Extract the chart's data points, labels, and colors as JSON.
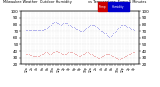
{
  "title_left": "Milwaukee Weather  Outdoor Humidity",
  "title_right": "vs Temperature  Every 5 Minutes",
  "blue_color": "#0000cc",
  "red_color": "#cc0000",
  "bg_color": "#ffffff",
  "grid_color": "#bbbbbb",
  "ylim": [
    20,
    100
  ],
  "yticks": [
    20,
    30,
    40,
    50,
    60,
    70,
    80,
    90,
    100
  ],
  "ytick_labels_left": [
    "20",
    "30",
    "40",
    "50",
    "60",
    "70",
    "80",
    "90",
    "100"
  ],
  "ytick_labels_right": [
    "20",
    "30",
    "40",
    "50",
    "60",
    "70",
    "80",
    "90",
    "100"
  ],
  "hum_y": [
    72,
    72,
    72,
    72,
    72,
    72,
    72,
    72,
    72,
    72,
    72,
    72,
    72,
    72,
    73,
    74,
    75,
    77,
    78,
    80,
    82,
    83,
    84,
    84,
    83,
    82,
    81,
    80,
    81,
    82,
    83,
    83,
    82,
    80,
    79,
    78,
    77,
    76,
    75,
    74,
    73,
    72,
    71,
    70,
    71,
    72,
    74,
    75,
    76,
    78,
    79,
    80,
    80,
    79,
    78,
    77,
    75,
    73,
    71,
    70,
    69,
    68,
    67,
    65,
    63,
    62,
    63,
    65,
    67,
    69,
    71,
    73,
    75,
    77,
    79,
    80,
    80,
    79,
    78,
    77,
    76,
    75,
    74,
    73,
    72
  ],
  "temp_y": [
    35,
    35,
    35,
    34,
    34,
    33,
    33,
    33,
    33,
    33,
    33,
    34,
    35,
    36,
    37,
    38,
    38,
    37,
    36,
    36,
    37,
    38,
    39,
    40,
    40,
    39,
    38,
    37,
    36,
    35,
    35,
    36,
    37,
    38,
    39,
    39,
    38,
    37,
    36,
    35,
    34,
    33,
    33,
    34,
    35,
    36,
    37,
    38,
    38,
    37,
    36,
    35,
    34,
    33,
    32,
    31,
    30,
    30,
    31,
    32,
    33,
    34,
    35,
    36,
    36,
    35,
    34,
    33,
    32,
    31,
    30,
    29,
    28,
    28,
    29,
    30,
    31,
    32,
    33,
    34,
    35,
    36,
    37,
    38,
    39
  ],
  "n_points": 85,
  "x_tick_labels": [
    "12a",
    "",
    "2a",
    "",
    "4a",
    "",
    "6a",
    "",
    "8a",
    "",
    "10a",
    "",
    "12p",
    "",
    "2p",
    "",
    "4p",
    "",
    "6p",
    "",
    "8p",
    "",
    "10p",
    "",
    "12a",
    "",
    "2a",
    "",
    "4a",
    "",
    "6a",
    "",
    "8a",
    "",
    "10a",
    "",
    "12p",
    "",
    "2p",
    "",
    "4p"
  ],
  "legend_red_label": "Temp",
  "legend_blue_label": "Humidity"
}
